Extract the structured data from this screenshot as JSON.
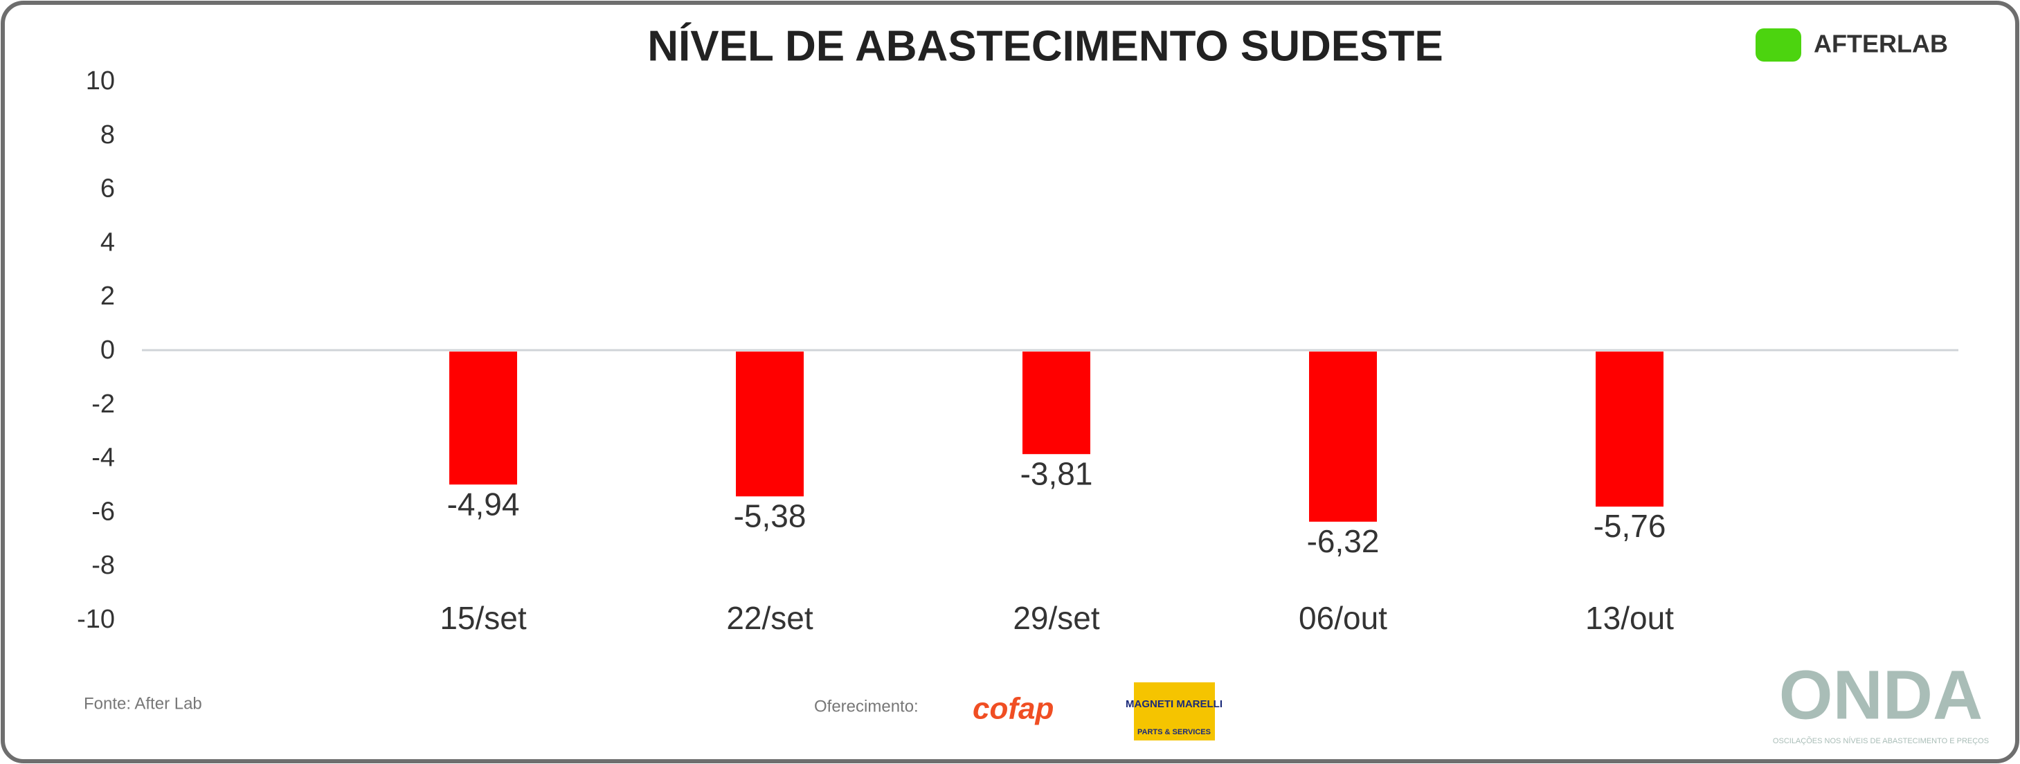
{
  "chart_data": {
    "type": "bar",
    "title": "NÍVEL DE ABASTECIMENTO SUDESTE",
    "categories": [
      "15/set",
      "22/set",
      "29/set",
      "06/out",
      "13/out"
    ],
    "values": [
      -4.94,
      -5.38,
      -3.81,
      -6.32,
      -5.76
    ],
    "value_labels": [
      "-4,94",
      "-5,38",
      "-3,81",
      "-6,32",
      "-5,76"
    ],
    "color": "#ff0000",
    "ylim": [
      -10,
      10
    ],
    "yticks": [
      10,
      8,
      6,
      4,
      2,
      0,
      -2,
      -4,
      -6,
      -8,
      -10
    ],
    "grid": false
  },
  "brand": "AFTERLAB",
  "footer": {
    "source": "Fonte: After Lab",
    "sponsor": "Oferecimento:",
    "cofap": "cofap",
    "magneti": "MAGNETI MARELLI",
    "magneti_sub": "PARTS & SERVICES",
    "onda": "ONDA",
    "onda_sub": "OSCILAÇÕES NOS NÍVEIS DE ABASTECIMENTO E PREÇOS"
  }
}
